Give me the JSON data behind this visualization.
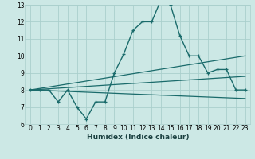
{
  "xlabel": "Humidex (Indice chaleur)",
  "xlim": [
    -0.5,
    23.5
  ],
  "ylim": [
    6,
    13
  ],
  "yticks": [
    6,
    7,
    8,
    9,
    10,
    11,
    12,
    13
  ],
  "xticks": [
    0,
    1,
    2,
    3,
    4,
    5,
    6,
    7,
    8,
    9,
    10,
    11,
    12,
    13,
    14,
    15,
    16,
    17,
    18,
    19,
    20,
    21,
    22,
    23
  ],
  "bg_color": "#cce8e5",
  "grid_color": "#aacfcc",
  "line_color": "#1a6b6b",
  "main_x": [
    0,
    1,
    2,
    3,
    4,
    5,
    6,
    7,
    8,
    9,
    10,
    11,
    12,
    13,
    14,
    15,
    16,
    17,
    18,
    19,
    20,
    21,
    22,
    23
  ],
  "main_y": [
    8.0,
    8.0,
    8.0,
    7.3,
    8.0,
    7.0,
    6.3,
    7.3,
    7.3,
    9.0,
    10.1,
    11.5,
    12.0,
    12.0,
    13.3,
    13.0,
    11.2,
    10.0,
    10.0,
    9.0,
    9.2,
    9.2,
    8.0,
    8.0
  ],
  "trend1_x": [
    0,
    23
  ],
  "trend1_y": [
    8.0,
    10.0
  ],
  "trend2_x": [
    0,
    23
  ],
  "trend2_y": [
    8.0,
    8.8
  ],
  "trend3_x": [
    0,
    23
  ],
  "trend3_y": [
    8.0,
    7.5
  ]
}
